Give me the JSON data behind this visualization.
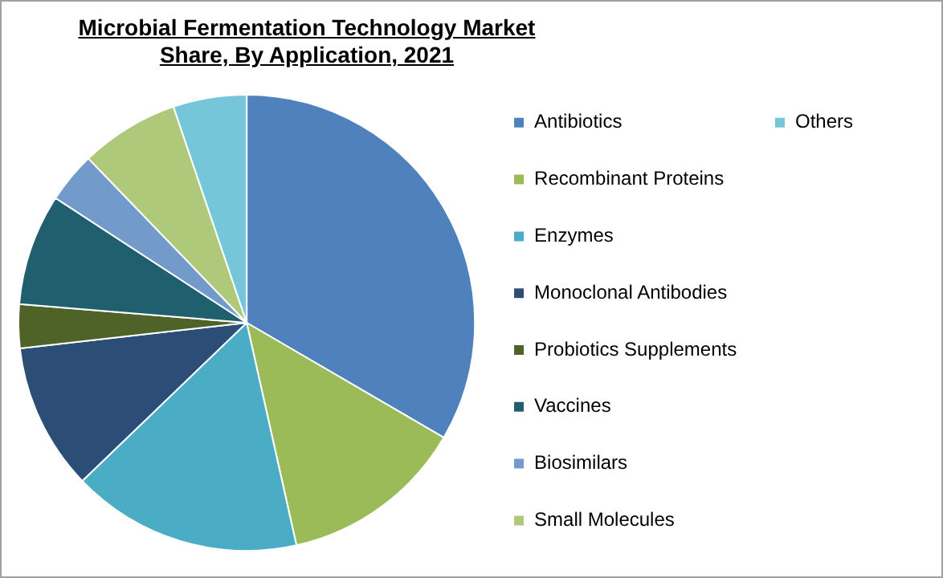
{
  "chart_data": {
    "type": "pie",
    "title": "Microbial Fermentation Technology Market Share, By Application, 2021",
    "categories": [
      "Antibiotics",
      "Recombinant Proteins",
      "Enzymes",
      "Monoclonal Antibodies",
      "Probiotics Supplements",
      "Vaccines",
      "Biosimilars",
      "Small Molecules",
      "Others"
    ],
    "values": [
      33.4,
      13.1,
      16.3,
      10.4,
      3.1,
      7.9,
      3.6,
      7.0,
      5.2
    ],
    "colors": [
      "#4f81bd",
      "#9bbb59",
      "#4bacc6",
      "#2c4d75",
      "#4f6228",
      "#1f5f6e",
      "#729aca",
      "#afc97a",
      "#75c6d8"
    ],
    "legend": "right"
  }
}
